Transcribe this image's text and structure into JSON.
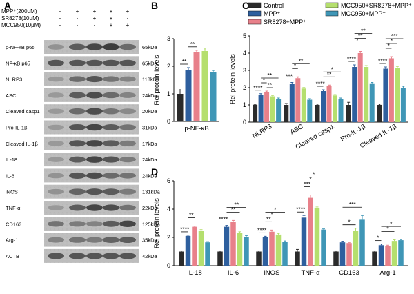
{
  "panels": {
    "A": {
      "label": "A",
      "treatments": [
        {
          "name": "MPP⁺(200μM)",
          "signs": [
            "-",
            "+",
            "+",
            "+",
            "+"
          ]
        },
        {
          "name": "SR8278(10μM)",
          "signs": [
            "-",
            "-",
            "+",
            "+",
            "-"
          ]
        },
        {
          "name": "MCC950(10μM)",
          "signs": [
            "-",
            "-",
            "-",
            "+",
            "+"
          ]
        }
      ],
      "blots": [
        {
          "protein": "p-NF-κB p65",
          "size": "65kDa"
        },
        {
          "protein": "NF-κB p65",
          "size": "65kDa"
        },
        {
          "protein": "NLRP3",
          "size": "118kDa"
        },
        {
          "protein": "ASC",
          "size": "24kDa"
        },
        {
          "protein": "Cleaved casp1",
          "size": "20kDa"
        },
        {
          "protein": "Pro-IL-1β",
          "size": "31kDa"
        },
        {
          "protein": "Cleaved IL-1β",
          "size": "17kDa"
        },
        {
          "protein": "IL-18",
          "size": "24kDa"
        },
        {
          "protein": "IL-6",
          "size": "24kDa"
        },
        {
          "protein": "iNOS",
          "size": "131kDa"
        },
        {
          "protein": "TNF-α",
          "size": "22kDa"
        },
        {
          "protein": "CD163",
          "size": "125kDa"
        },
        {
          "protein": "Arg-1",
          "size": "35kDa"
        },
        {
          "protein": "ACTB",
          "size": "42kDa"
        }
      ]
    },
    "B": {
      "label": "B"
    },
    "C": {
      "label": "C"
    },
    "D": {
      "label": "D"
    }
  },
  "legend": {
    "items": [
      {
        "name": "Control",
        "color": "#2b2b2b"
      },
      {
        "name": "MPP⁺",
        "color": "#2e5f9e"
      },
      {
        "name": "SR8278+MPP⁺",
        "color": "#e8808a"
      },
      {
        "name": "MCC950+SR8278+MPP⁺",
        "color": "#b5df6e"
      },
      {
        "name": "MCC950+MPP⁺",
        "color": "#3f96b6"
      }
    ]
  },
  "chart_data": [
    {
      "panel": "B",
      "type": "bar",
      "ylabel": "Rel protein levels",
      "ylim": [
        0,
        3
      ],
      "yticks": [
        0,
        1,
        2,
        3
      ],
      "categories": [
        "p-NF-κB"
      ],
      "series": [
        {
          "name": "Control",
          "values": [
            1.0
          ],
          "errors": [
            0.15
          ]
        },
        {
          "name": "MPP⁺",
          "values": [
            1.85
          ],
          "errors": [
            0.1
          ]
        },
        {
          "name": "SR8278+MPP⁺",
          "values": [
            2.5
          ],
          "errors": [
            0.08
          ]
        },
        {
          "name": "MCC950+SR8278+MPP⁺",
          "values": [
            2.55
          ],
          "errors": [
            0.08
          ]
        },
        {
          "name": "MCC950+MPP⁺",
          "values": [
            1.8
          ],
          "errors": [
            0.05
          ]
        }
      ],
      "significance": [
        {
          "label": "**",
          "from": 0,
          "to": 1
        },
        {
          "label": "**",
          "from": 1,
          "to": 2
        }
      ]
    },
    {
      "panel": "C",
      "type": "bar",
      "ylabel": "Rel protein levels",
      "ylim": [
        0,
        5
      ],
      "yticks": [
        0,
        1,
        2,
        3,
        4,
        5
      ],
      "categories": [
        "NLRP3",
        "ASC",
        "Cleaved casp1",
        "Pro-IL-1β",
        "Cleaved IL-1β"
      ],
      "series": [
        {
          "name": "Control",
          "values": [
            1.0,
            1.0,
            1.0,
            1.0,
            1.0
          ],
          "errors": [
            0.03,
            0.08,
            0.05,
            0.15,
            0.05
          ]
        },
        {
          "name": "MPP⁺",
          "values": [
            1.6,
            2.2,
            1.8,
            3.2,
            3.1
          ],
          "errors": [
            0.05,
            0.1,
            0.08,
            0.12,
            0.1
          ]
        },
        {
          "name": "SR8278+MPP⁺",
          "values": [
            1.75,
            2.55,
            2.1,
            4.0,
            3.7
          ],
          "errors": [
            0.05,
            0.08,
            0.05,
            0.1,
            0.1
          ]
        },
        {
          "name": "MCC950+SR8278+MPP⁺",
          "values": [
            1.5,
            1.95,
            1.55,
            3.2,
            3.15
          ],
          "errors": [
            0.05,
            0.06,
            0.05,
            0.08,
            0.08
          ]
        },
        {
          "name": "MCC950+MPP⁺",
          "values": [
            1.35,
            1.3,
            1.35,
            2.25,
            2.0
          ],
          "errors": [
            0.05,
            0.06,
            0.05,
            0.05,
            0.08
          ]
        }
      ],
      "significance": [
        {
          "cat": 0,
          "label": "****",
          "from": 0,
          "to": 1,
          "level": 0
        },
        {
          "cat": 0,
          "label": "*",
          "from": 1,
          "to": 2,
          "level": 1
        },
        {
          "cat": 0,
          "label": "**",
          "from": 2,
          "to": 3,
          "level": 0
        },
        {
          "cat": 0,
          "label": "**",
          "from": 1,
          "to": 4,
          "level": 2
        },
        {
          "cat": 1,
          "label": "***",
          "from": 0,
          "to": 1,
          "level": 0
        },
        {
          "cat": 1,
          "label": "*",
          "from": 1,
          "to": 2,
          "level": 1
        },
        {
          "cat": 1,
          "label": "**",
          "from": 1,
          "to": 4,
          "level": 2
        },
        {
          "cat": 2,
          "label": "****",
          "from": 0,
          "to": 1,
          "level": 0
        },
        {
          "cat": 2,
          "label": "**",
          "from": 1,
          "to": 3,
          "level": 1
        },
        {
          "cat": 2,
          "label": "*",
          "from": 1,
          "to": 4,
          "level": 2
        },
        {
          "cat": 3,
          "label": "****",
          "from": 0,
          "to": 1,
          "level": 0
        },
        {
          "cat": 3,
          "label": "*",
          "from": 1,
          "to": 2,
          "level": 1
        },
        {
          "cat": 3,
          "label": "**",
          "from": 1,
          "to": 3,
          "level": 2
        },
        {
          "cat": 3,
          "label": "**",
          "from": 1,
          "to": 4,
          "level": 3
        },
        {
          "cat": 4,
          "label": "****",
          "from": 0,
          "to": 1,
          "level": 0
        },
        {
          "cat": 4,
          "label": "*",
          "from": 1,
          "to": 2,
          "level": 1
        },
        {
          "cat": 4,
          "label": "*",
          "from": 1,
          "to": 3,
          "level": 2
        },
        {
          "cat": 4,
          "label": "***",
          "from": 1,
          "to": 4,
          "level": 3
        }
      ]
    },
    {
      "panel": "D",
      "type": "bar",
      "ylabel": "Rel protein levels",
      "ylim": [
        0,
        6
      ],
      "yticks": [
        0,
        2,
        4,
        6
      ],
      "categories": [
        "IL-18",
        "IL-6",
        "iNOS",
        "TNF-α",
        "CD163",
        "Arg-1"
      ],
      "series": [
        {
          "name": "Control",
          "values": [
            1.0,
            1.0,
            1.0,
            1.0,
            1.0,
            1.0
          ],
          "errors": [
            0.05,
            0.05,
            0.05,
            0.15,
            0.05,
            0.05
          ]
        },
        {
          "name": "MPP⁺",
          "values": [
            2.1,
            2.75,
            2.0,
            3.4,
            1.65,
            1.45
          ],
          "errors": [
            0.05,
            0.1,
            0.08,
            0.15,
            0.08,
            0.08
          ]
        },
        {
          "name": "SR8278+MPP⁺",
          "values": [
            2.75,
            3.1,
            2.4,
            4.8,
            1.6,
            1.4
          ],
          "errors": [
            0.05,
            0.1,
            0.12,
            0.2,
            0.05,
            0.05
          ]
        },
        {
          "name": "MCC950+SR8278+MPP⁺",
          "values": [
            2.45,
            2.3,
            2.2,
            4.05,
            2.45,
            1.75
          ],
          "errors": [
            0.1,
            0.1,
            0.08,
            0.1,
            0.2,
            0.08
          ]
        },
        {
          "name": "MCC950+MPP⁺",
          "values": [
            1.65,
            2.05,
            1.7,
            2.55,
            3.25,
            1.8
          ],
          "errors": [
            0.05,
            0.08,
            0.05,
            0.05,
            0.3,
            0.05
          ]
        }
      ],
      "significance": [
        {
          "cat": 0,
          "label": "****",
          "from": 0,
          "to": 1,
          "level": 0
        },
        {
          "cat": 0,
          "label": "**",
          "from": 1,
          "to": 2,
          "level": 1
        },
        {
          "cat": 1,
          "label": "****",
          "from": 0,
          "to": 1,
          "level": 0
        },
        {
          "cat": 1,
          "label": "**",
          "from": 1,
          "to": 3,
          "level": 1
        },
        {
          "cat": 1,
          "label": "**",
          "from": 1,
          "to": 4,
          "level": 2
        },
        {
          "cat": 2,
          "label": "****",
          "from": 0,
          "to": 1,
          "level": 0
        },
        {
          "cat": 2,
          "label": "**",
          "from": 1,
          "to": 2,
          "level": 1
        },
        {
          "cat": 2,
          "label": "*",
          "from": 1,
          "to": 3,
          "level": 2
        },
        {
          "cat": 2,
          "label": "*",
          "from": 1,
          "to": 4,
          "level": 3
        },
        {
          "cat": 3,
          "label": "****",
          "from": 0,
          "to": 1,
          "level": 0
        },
        {
          "cat": 3,
          "label": "***",
          "from": 1,
          "to": 2,
          "level": 1
        },
        {
          "cat": 3,
          "label": "*",
          "from": 1,
          "to": 3,
          "level": 2
        },
        {
          "cat": 3,
          "label": "*",
          "from": 1,
          "to": 4,
          "level": 3
        },
        {
          "cat": 4,
          "label": "*",
          "from": 1,
          "to": 3,
          "level": 0
        },
        {
          "cat": 4,
          "label": "***",
          "from": 1,
          "to": 4,
          "level": 1
        },
        {
          "cat": 5,
          "label": "*",
          "from": 0,
          "to": 1,
          "level": 0
        },
        {
          "cat": 5,
          "label": "*",
          "from": 1,
          "to": 3,
          "level": 1
        },
        {
          "cat": 5,
          "label": "*",
          "from": 1,
          "to": 4,
          "level": 2
        }
      ]
    }
  ]
}
